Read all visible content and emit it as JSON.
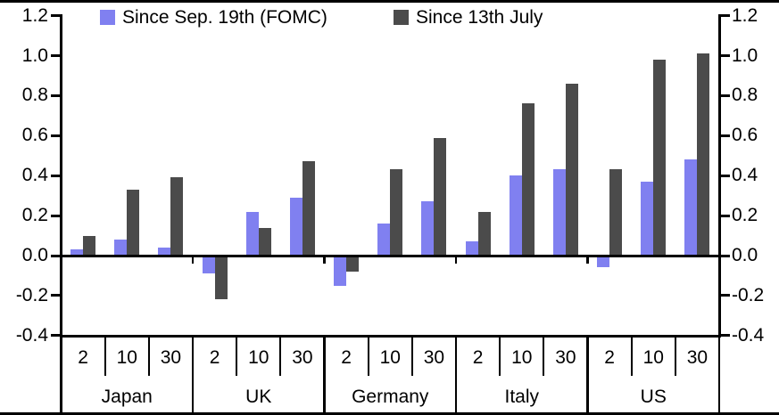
{
  "chart_data": {
    "type": "bar",
    "title": "",
    "groups": [
      "Japan",
      "UK",
      "Germany",
      "Italy",
      "US"
    ],
    "tenor_labels": [
      "2",
      "10",
      "30"
    ],
    "series": [
      {
        "name": "Since Sep. 19th (FOMC)",
        "color": "#8080f0",
        "values": [
          [
            0.03,
            0.08,
            0.04
          ],
          [
            -0.09,
            0.22,
            0.29
          ],
          [
            -0.15,
            0.16,
            0.27
          ],
          [
            0.07,
            0.4,
            0.43
          ],
          [
            -0.06,
            0.37,
            0.48
          ]
        ]
      },
      {
        "name": "Since 13th July",
        "color": "#4b4b4b",
        "values": [
          [
            0.1,
            0.33,
            0.39
          ],
          [
            -0.22,
            0.14,
            0.47
          ],
          [
            -0.08,
            0.43,
            0.59
          ],
          [
            0.22,
            0.76,
            0.86
          ],
          [
            0.43,
            0.98,
            1.01
          ]
        ]
      }
    ],
    "y_axis": {
      "min": -0.4,
      "max": 1.2,
      "step": 0.2,
      "tick_labels": [
        "-0.4",
        "-0.2",
        "0.0",
        "0.2",
        "0.4",
        "0.6",
        "0.8",
        "1.0",
        "1.2"
      ],
      "mirrored_right_axis": true
    },
    "legend_position": "top",
    "grid": false
  },
  "colors": {
    "background": "#ffffff",
    "axis": "#000000",
    "series_fomc": "#8080f0",
    "series_july": "#4b4b4b"
  }
}
